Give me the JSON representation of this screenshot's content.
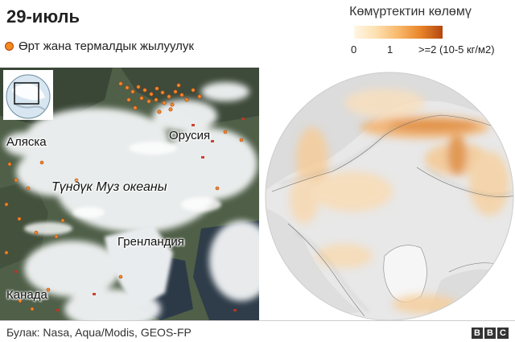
{
  "title": "29-июль",
  "fire_legend": {
    "label": "Өрт жана термалдык жылуулук",
    "icon": "fire-dot-icon",
    "color": "#f28a1e"
  },
  "carbon_legend": {
    "title": "Көмүртектин көлөмү",
    "tick_0": "0",
    "tick_1": "1",
    "tick_2": ">=2 (10-5 кг/м2)",
    "colors": [
      "#fff6e6",
      "#fde0b0",
      "#f8b86a",
      "#e9852a",
      "#b4470e"
    ]
  },
  "satellite_map": {
    "labels": {
      "alaska": "Аляска",
      "russia": "Орусия",
      "arctic_ocean": "Түндүк Муз океаны",
      "greenland": "Гренландия",
      "canada": "Канада"
    },
    "inset_icon": "globe-locator-icon"
  },
  "source": "Булак: Nasa, Aqua/Modis, GEOS-FP",
  "brand": {
    "letters": [
      "B",
      "B",
      "C"
    ]
  }
}
